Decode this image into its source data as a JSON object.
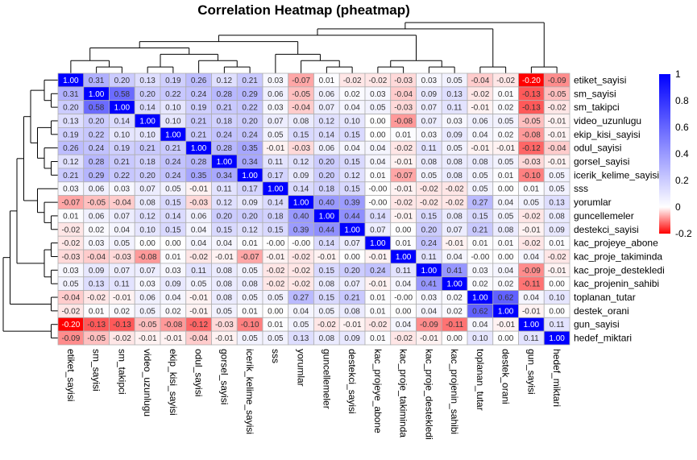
{
  "chart_data": {
    "type": "heatmap",
    "title": "Correlation Heatmap (pheatmap)",
    "row_labels": [
      "etiket_sayisi",
      "sm_sayisi",
      "sm_takipci",
      "video_uzunlugu",
      "ekip_kisi_sayisi",
      "odul_sayisi",
      "gorsel_sayisi",
      "icerik_kelime_sayisi",
      "sss",
      "yorumlar",
      "guncellemeler",
      "destekci_sayisi",
      "kac_projeye_abone",
      "kac_proje_takiminda",
      "kac_proje_destekledi",
      "kac_projenin_sahibi",
      "toplanan_tutar",
      "destek_orani",
      "gun_sayisi",
      "hedef_miktari"
    ],
    "col_labels": [
      "etiket_sayisi",
      "sm_sayisi",
      "sm_takipci",
      "video_uzunlugu",
      "ekip_kisi_sayisi",
      "odul_sayisi",
      "gorsel_sayisi",
      "icerik_kelime_sayisi",
      "sss",
      "yorumlar",
      "guncellemeler",
      "destekci_sayisi",
      "kac_projeye_abone",
      "kac_proje_takiminda",
      "kac_proje_destekledi",
      "kac_projenin_sahibi",
      "toplanan_tutar",
      "destek_orani",
      "gun_sayisi",
      "hedef_miktari"
    ],
    "values": [
      [
        "1.00",
        "0.31",
        "0.20",
        "0.13",
        "0.19",
        "0.26",
        "0.12",
        "0.21",
        "0.03",
        "-0.07",
        "0.01",
        "-0.02",
        "-0.02",
        "-0.03",
        "0.03",
        "0.05",
        "-0.04",
        "-0.02",
        "-0.20",
        "-0.09"
      ],
      [
        "0.31",
        "1.00",
        "0.58",
        "0.20",
        "0.22",
        "0.24",
        "0.28",
        "0.29",
        "0.06",
        "-0.05",
        "0.06",
        "0.02",
        "0.03",
        "-0.04",
        "0.09",
        "0.13",
        "-0.02",
        "0.01",
        "-0.13",
        "-0.05"
      ],
      [
        "0.20",
        "0.58",
        "1.00",
        "0.14",
        "0.10",
        "0.19",
        "0.21",
        "0.22",
        "0.03",
        "-0.04",
        "0.07",
        "0.04",
        "0.05",
        "-0.03",
        "0.07",
        "0.11",
        "-0.01",
        "0.02",
        "-0.13",
        "-0.02"
      ],
      [
        "0.13",
        "0.20",
        "0.14",
        "1.00",
        "0.10",
        "0.21",
        "0.18",
        "0.20",
        "0.07",
        "0.08",
        "0.12",
        "0.10",
        "0.00",
        "-0.08",
        "0.07",
        "0.03",
        "0.06",
        "0.05",
        "-0.05",
        "-0.01"
      ],
      [
        "0.19",
        "0.22",
        "0.10",
        "0.10",
        "1.00",
        "0.21",
        "0.24",
        "0.24",
        "0.05",
        "0.15",
        "0.14",
        "0.15",
        "0.00",
        "0.01",
        "0.03",
        "0.09",
        "0.04",
        "0.02",
        "-0.08",
        "-0.01"
      ],
      [
        "0.26",
        "0.24",
        "0.19",
        "0.21",
        "0.21",
        "1.00",
        "0.28",
        "0.35",
        "-0.01",
        "-0.03",
        "0.06",
        "0.04",
        "0.04",
        "-0.02",
        "0.11",
        "0.05",
        "-0.01",
        "-0.01",
        "-0.12",
        "-0.04"
      ],
      [
        "0.12",
        "0.28",
        "0.21",
        "0.18",
        "0.24",
        "0.28",
        "1.00",
        "0.34",
        "0.11",
        "0.12",
        "0.20",
        "0.15",
        "0.04",
        "-0.01",
        "0.08",
        "0.08",
        "0.08",
        "0.05",
        "-0.03",
        "-0.01"
      ],
      [
        "0.21",
        "0.29",
        "0.22",
        "0.20",
        "0.24",
        "0.35",
        "0.34",
        "1.00",
        "0.17",
        "0.09",
        "0.20",
        "0.12",
        "0.01",
        "-0.07",
        "0.05",
        "0.08",
        "0.05",
        "0.01",
        "-0.10",
        "0.05"
      ],
      [
        "0.03",
        "0.06",
        "0.03",
        "0.07",
        "0.05",
        "-0.01",
        "0.11",
        "0.17",
        "1.00",
        "0.14",
        "0.18",
        "0.15",
        "-0.00",
        "-0.01",
        "-0.02",
        "-0.02",
        "0.05",
        "0.00",
        "0.01",
        "0.05"
      ],
      [
        "-0.07",
        "-0.05",
        "-0.04",
        "0.08",
        "0.15",
        "-0.03",
        "0.12",
        "0.09",
        "0.14",
        "1.00",
        "0.40",
        "0.39",
        "-0.00",
        "-0.02",
        "-0.02",
        "-0.02",
        "0.27",
        "0.04",
        "0.05",
        "0.13"
      ],
      [
        "0.01",
        "0.06",
        "0.07",
        "0.12",
        "0.14",
        "0.06",
        "0.20",
        "0.20",
        "0.18",
        "0.40",
        "1.00",
        "0.44",
        "0.14",
        "-0.01",
        "0.15",
        "0.08",
        "0.15",
        "0.05",
        "-0.02",
        "0.08"
      ],
      [
        "-0.02",
        "0.02",
        "0.04",
        "0.10",
        "0.15",
        "0.04",
        "0.15",
        "0.12",
        "0.15",
        "0.39",
        "0.44",
        "1.00",
        "0.07",
        "0.00",
        "0.20",
        "0.07",
        "0.21",
        "0.08",
        "-0.01",
        "0.09"
      ],
      [
        "-0.02",
        "0.03",
        "0.05",
        "0.00",
        "0.00",
        "0.04",
        "0.04",
        "0.01",
        "-0.00",
        "-0.00",
        "0.14",
        "0.07",
        "1.00",
        "0.01",
        "0.24",
        "-0.01",
        "0.01",
        "0.01",
        "-0.02",
        "0.01"
      ],
      [
        "-0.03",
        "-0.04",
        "-0.03",
        "-0.08",
        "0.01",
        "-0.02",
        "-0.01",
        "-0.07",
        "-0.01",
        "-0.02",
        "-0.01",
        "0.00",
        "-0.01",
        "1.00",
        "0.11",
        "0.04",
        "-0.00",
        "0.00",
        "0.04",
        "-0.02"
      ],
      [
        "0.03",
        "0.09",
        "0.07",
        "0.07",
        "0.03",
        "0.11",
        "0.08",
        "0.05",
        "-0.02",
        "-0.02",
        "0.15",
        "0.20",
        "0.24",
        "0.11",
        "1.00",
        "0.41",
        "0.03",
        "0.04",
        "-0.09",
        "-0.01"
      ],
      [
        "0.05",
        "0.13",
        "0.11",
        "0.03",
        "0.09",
        "0.05",
        "0.08",
        "0.08",
        "-0.02",
        "-0.02",
        "0.08",
        "0.07",
        "-0.01",
        "0.04",
        "0.41",
        "1.00",
        "0.02",
        "0.02",
        "-0.11",
        "0.00"
      ],
      [
        "-0.04",
        "-0.02",
        "-0.01",
        "0.06",
        "0.04",
        "-0.01",
        "0.08",
        "0.05",
        "0.05",
        "0.27",
        "0.15",
        "0.21",
        "0.01",
        "-0.00",
        "0.03",
        "0.02",
        "1.00",
        "0.62",
        "0.04",
        "0.10"
      ],
      [
        "-0.02",
        "0.01",
        "0.02",
        "0.05",
        "0.02",
        "-0.01",
        "0.05",
        "0.01",
        "0.00",
        "0.04",
        "0.05",
        "0.08",
        "0.01",
        "0.00",
        "0.04",
        "0.02",
        "0.62",
        "1.00",
        "-0.01",
        "0.00"
      ],
      [
        "-0.20",
        "-0.13",
        "-0.13",
        "-0.05",
        "-0.08",
        "-0.12",
        "-0.03",
        "-0.10",
        "0.01",
        "0.05",
        "-0.02",
        "-0.01",
        "-0.02",
        "0.04",
        "-0.09",
        "-0.11",
        "0.04",
        "-0.01",
        "1.00",
        "0.11"
      ],
      [
        "-0.09",
        "-0.05",
        "-0.02",
        "-0.01",
        "-0.01",
        "-0.04",
        "-0.01",
        "0.05",
        "0.05",
        "0.13",
        "0.08",
        "0.09",
        "0.01",
        "-0.02",
        "-0.01",
        "0.00",
        "0.10",
        "0.00",
        "0.11",
        "1.00"
      ]
    ],
    "color_scale": {
      "min": -0.2,
      "mid": 0.0,
      "max": 1.0,
      "low_color": "#ff0000",
      "mid_color": "#ffffff",
      "high_color": "#0000ff",
      "legend_ticks": [
        "1",
        "0.8",
        "0.6",
        "0.4",
        "0.2",
        "0",
        "-0.2"
      ]
    },
    "dendrogram": {
      "rows_tree": "((((((etiket_sayisi,(sm_sayisi,sm_takipci)),((video_uzunlugu,ekip_kisi_sayisi),(odul_sayisi,(gorsel_sayisi,icerik_kelime_sayisi)))),(sss,(yorumlar,(guncellemeler,destekci_sayisi)))),((kac_projeye_abone,kac_proje_takiminda),(kac_proje_destekledi,kac_projenin_sahibi))),(toplanan_tutar,destek_orani)),(gun_sayisi,hedef_miktari))",
      "shown_on": [
        "left",
        "top"
      ]
    },
    "cell_border_color": "#b0b0b0",
    "legend_placement": "right"
  }
}
